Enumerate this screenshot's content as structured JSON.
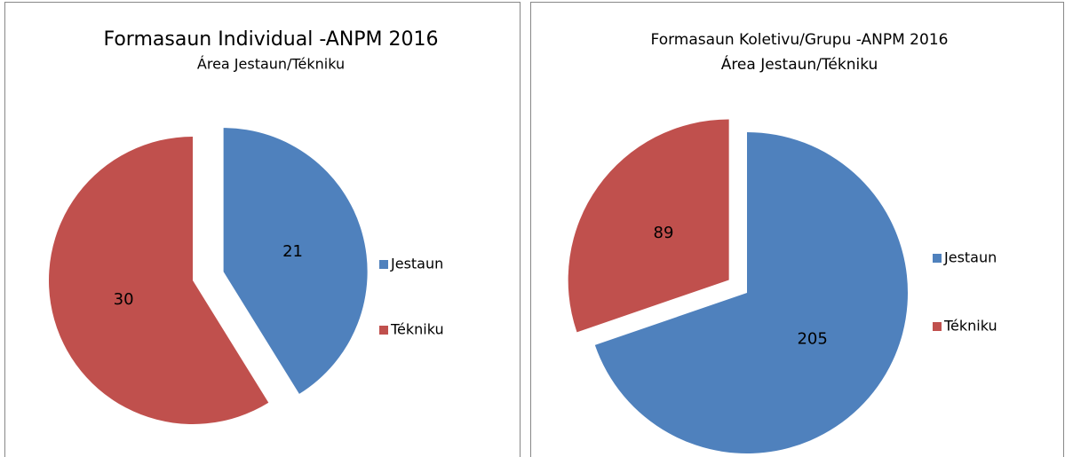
{
  "chart_data": [
    {
      "type": "pie",
      "title": "Formasaun Individual -ANPM 2016",
      "subtitle": "Área Jestaun/Tékniku",
      "categories": [
        "Jestaun",
        "Tékniku"
      ],
      "values": [
        21,
        30
      ],
      "colors": [
        "#4f81bd",
        "#c0504d"
      ],
      "exploded": [
        true,
        false
      ],
      "legend": "right"
    },
    {
      "type": "pie",
      "title": "Formasaun Koletivu/Grupu -ANPM 2016",
      "subtitle": "Área Jestaun/Tékniku",
      "categories": [
        "Jestaun",
        "Tékniku"
      ],
      "values": [
        205,
        89
      ],
      "colors": [
        "#4f81bd",
        "#c0504d"
      ],
      "exploded": [
        false,
        true
      ],
      "legend": "right"
    }
  ]
}
